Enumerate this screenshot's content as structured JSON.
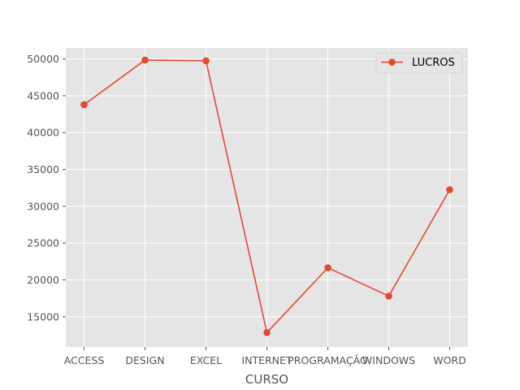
{
  "chart_data": {
    "type": "line",
    "title": "",
    "xlabel": "CURSO",
    "ylabel": "",
    "categories": [
      "ACCESS",
      "DESIGN",
      "EXCEL",
      "INTERNET",
      "PROGRAMAÇÃO",
      "WINDOWS",
      "WORD"
    ],
    "series": [
      {
        "name": "LUCROS",
        "values": [
          43800,
          49850,
          49750,
          12850,
          21650,
          17800,
          32250
        ],
        "color": "#E24A33",
        "marker": "circle"
      }
    ],
    "ylim": [
      10900,
      51500
    ],
    "yticks": [
      15000,
      20000,
      25000,
      30000,
      35000,
      40000,
      45000,
      50000
    ],
    "grid": true,
    "legend": "top-right",
    "plot_background": "#E5E5E5",
    "grid_color": "#FFFFFF"
  }
}
